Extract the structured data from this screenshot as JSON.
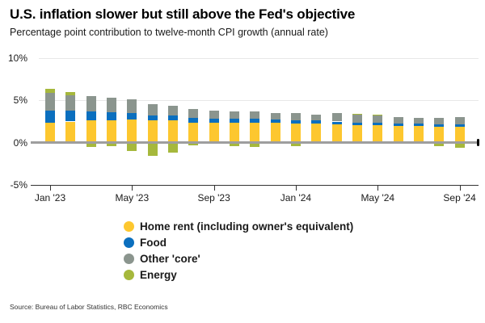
{
  "header": {
    "title": "U.S. inflation slower but still above the Fed's objective",
    "subtitle": "Percentage point contribution to twelve-month CPI growth (annual rate)"
  },
  "chart_data": {
    "type": "bar",
    "stacked": true,
    "title": "U.S. inflation slower but still above the Fed's objective",
    "ylabel": "Percentage point contribution to twelve-month CPI growth (annual rate)",
    "ylim": [
      -5,
      10
    ],
    "y_tick_values": [
      10,
      5,
      0,
      -5
    ],
    "y_tick_labels": [
      "10%",
      "5%",
      "0%",
      "-5%"
    ],
    "grid": "horizontal",
    "legend_position": "bottom",
    "categories": [
      "Jan '23",
      "Feb '23",
      "Mar '23",
      "Apr '23",
      "May '23",
      "Jun '23",
      "Jul '23",
      "Aug '23",
      "Sep '23",
      "Oct '23",
      "Nov '23",
      "Dec '23",
      "Jan '24",
      "Feb '24",
      "Mar '24",
      "Apr '24",
      "May '24",
      "Jun '24",
      "Jul '24",
      "Aug '24",
      "Sep '24"
    ],
    "x_tick_indices": [
      0,
      4,
      8,
      12,
      16,
      20
    ],
    "x_tick_labels": [
      "Jan '23",
      "May '23",
      "Sep '23",
      "Jan '24",
      "May '24",
      "Sep '24"
    ],
    "series": [
      {
        "name": "Home rent (including owner's equivalent)",
        "color": "#fdc72f",
        "values": [
          2.4,
          2.5,
          2.6,
          2.6,
          2.7,
          2.6,
          2.6,
          2.4,
          2.4,
          2.4,
          2.4,
          2.4,
          2.3,
          2.3,
          2.2,
          2.1,
          2.1,
          2.0,
          2.0,
          1.9,
          1.9
        ]
      },
      {
        "name": "Food",
        "color": "#0b6fbe",
        "values": [
          1.4,
          1.3,
          1.1,
          1.0,
          0.8,
          0.6,
          0.6,
          0.5,
          0.4,
          0.4,
          0.4,
          0.3,
          0.3,
          0.3,
          0.3,
          0.3,
          0.3,
          0.3,
          0.3,
          0.3,
          0.3
        ]
      },
      {
        "name": "Other 'core'",
        "color": "#8b958e",
        "values": [
          2.1,
          1.8,
          1.8,
          1.7,
          1.6,
          1.4,
          1.2,
          1.1,
          1.0,
          0.9,
          0.9,
          0.8,
          0.9,
          0.7,
          1.0,
          0.9,
          0.8,
          0.7,
          0.6,
          0.7,
          0.8
        ]
      },
      {
        "name": "Energy",
        "color": "#a6b83c",
        "values": [
          0.5,
          0.4,
          -0.5,
          -0.4,
          -1.0,
          -1.6,
          -1.2,
          -0.3,
          -0.1,
          -0.4,
          -0.5,
          -0.1,
          -0.4,
          -0.1,
          0.0,
          0.1,
          0.1,
          0.0,
          0.0,
          -0.4,
          -0.6
        ]
      }
    ],
    "totals": [
      6.4,
      6.0,
      5.0,
      4.9,
      4.1,
      3.0,
      3.2,
      3.7,
      3.7,
      3.3,
      3.2,
      3.4,
      3.1,
      3.2,
      3.5,
      3.4,
      3.3,
      3.0,
      2.9,
      2.5,
      2.4
    ]
  },
  "colors": {
    "home_rent": "#fdc72f",
    "food": "#0b6fbe",
    "other_core": "#8b958e",
    "energy": "#a6b83c",
    "zero_line": "#9e9e9e",
    "gridline": "#e7e7e7"
  },
  "source": "Source: Bureau of Labor Statistics, RBC Economics"
}
